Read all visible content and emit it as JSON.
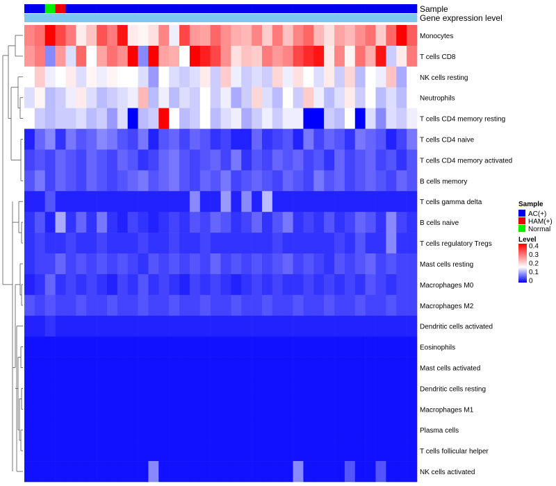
{
  "chart_data": {
    "type": "heatmap",
    "title": "",
    "annotation_tracks": [
      "Sample",
      "Gene expression level"
    ],
    "rows": [
      "Monocytes",
      "T cells CD8",
      "NK cells resting",
      "Neutrophils",
      "T cells CD4 memory resting",
      "T cells CD4 naive",
      "T cells CD4 memory activated",
      "B cells memory",
      "T cells gamma delta",
      "B cells naive",
      "T cells regulatory  Tregs",
      "Mast cells resting",
      "Macrophages M0",
      "Macrophages M2",
      "Dendritic cells activated",
      "Eosinophils",
      "Mast cells activated",
      "Dendritic cells resting",
      "Macrophages M1",
      "Plasma cells",
      "T cells follicular helper",
      "NK cells activated"
    ],
    "sample_groups": [
      "AC(+)",
      "AC(+)",
      "Normal",
      "HAM(+)",
      "AC(+)",
      "AC(+)",
      "AC(+)",
      "AC(+)",
      "AC(+)",
      "AC(+)",
      "AC(+)",
      "AC(+)",
      "AC(+)",
      "AC(+)",
      "AC(+)",
      "AC(+)",
      "AC(+)",
      "AC(+)",
      "AC(+)",
      "AC(+)",
      "AC(+)",
      "AC(+)",
      "AC(+)",
      "AC(+)",
      "AC(+)",
      "AC(+)",
      "AC(+)",
      "AC(+)",
      "AC(+)",
      "AC(+)",
      "AC(+)",
      "AC(+)",
      "AC(+)",
      "AC(+)",
      "AC(+)",
      "AC(+)",
      "AC(+)",
      "AC(+)"
    ],
    "expression_track": [
      0.9,
      0.9,
      0.9,
      0.9,
      0.9,
      0.9,
      0.9,
      0.9,
      0.9,
      0.9,
      0.9,
      0.9,
      0.9,
      0.9,
      0.9,
      0.9,
      0.9,
      0.9,
      0.9,
      0.9,
      0.9,
      0.9,
      0.9,
      0.9,
      0.9,
      0.9,
      0.9,
      0.9,
      0.9,
      0.9,
      0.9,
      0.9,
      0.9,
      0.9,
      0.9,
      0.9,
      0.9,
      0.9
    ],
    "values": [
      [
        0.27,
        0.29,
        0.4,
        0.33,
        0.28,
        0.17,
        0.21,
        0.32,
        0.28,
        0.38,
        0.17,
        0.16,
        0.18,
        0.27,
        0.14,
        0.33,
        0.25,
        0.24,
        0.3,
        0.26,
        0.23,
        0.22,
        0.27,
        0.2,
        0.28,
        0.21,
        0.27,
        0.3,
        0.22,
        0.18,
        0.24,
        0.22,
        0.26,
        0.29,
        0.2,
        0.3,
        0.4,
        0.31
      ],
      [
        0.25,
        0.28,
        0.08,
        0.25,
        0.13,
        0.3,
        0.15,
        0.24,
        0.29,
        0.26,
        0.4,
        0.08,
        0.4,
        0.24,
        0.23,
        0.15,
        0.4,
        0.37,
        0.33,
        0.26,
        0.18,
        0.21,
        0.2,
        0.28,
        0.25,
        0.27,
        0.33,
        0.36,
        0.38,
        0.17,
        0.27,
        0.16,
        0.29,
        0.23,
        0.38,
        0.12,
        0.17,
        0.28
      ],
      [
        0.15,
        0.2,
        0.14,
        0.15,
        0.17,
        0.13,
        0.16,
        0.14,
        0.16,
        0.15,
        0.15,
        0.13,
        0.09,
        0.15,
        0.13,
        0.12,
        0.13,
        0.17,
        0.12,
        0.2,
        0.14,
        0.12,
        0.13,
        0.12,
        0.19,
        0.14,
        0.18,
        0.15,
        0.13,
        0.17,
        0.12,
        0.19,
        0.11,
        0.15,
        0.14,
        0.21,
        0.1,
        0.15
      ],
      [
        0.13,
        0.16,
        0.11,
        0.12,
        0.14,
        0.17,
        0.13,
        0.11,
        0.12,
        0.13,
        0.14,
        0.22,
        0.11,
        0.14,
        0.11,
        0.13,
        0.12,
        0.15,
        0.12,
        0.14,
        0.1,
        0.12,
        0.19,
        0.13,
        0.11,
        0.15,
        0.12,
        0.2,
        0.14,
        0.11,
        0.13,
        0.17,
        0.12,
        0.15,
        0.11,
        0.13,
        0.11,
        0.15
      ],
      [
        0.15,
        0.12,
        0.11,
        0.12,
        0.12,
        0.13,
        0.11,
        0.12,
        0.09,
        0.13,
        0.0,
        0.11,
        0.12,
        0.4,
        0.15,
        0.11,
        0.12,
        0.15,
        0.11,
        0.13,
        0.14,
        0.1,
        0.12,
        0.14,
        0.12,
        0.14,
        0.14,
        0.0,
        0.0,
        0.12,
        0.11,
        0.15,
        0.0,
        0.13,
        0.08,
        0.13,
        0.12,
        0.14
      ],
      [
        0.02,
        0.06,
        0.08,
        0.03,
        0.07,
        0.05,
        0.06,
        0.08,
        0.07,
        0.05,
        0.04,
        0.07,
        0.02,
        0.05,
        0.06,
        0.04,
        0.06,
        0.05,
        0.03,
        0.04,
        0.02,
        0.02,
        0.06,
        0.03,
        0.04,
        0.05,
        0.02,
        0.07,
        0.04,
        0.06,
        0.05,
        0.03,
        0.07,
        0.06,
        0.05,
        0.02,
        0.04,
        0.07
      ],
      [
        0.04,
        0.05,
        0.04,
        0.06,
        0.05,
        0.04,
        0.06,
        0.05,
        0.04,
        0.06,
        0.05,
        0.03,
        0.04,
        0.06,
        0.07,
        0.05,
        0.04,
        0.05,
        0.06,
        0.04,
        0.07,
        0.03,
        0.05,
        0.04,
        0.06,
        0.05,
        0.06,
        0.04,
        0.05,
        0.03,
        0.06,
        0.04,
        0.05,
        0.06,
        0.04,
        0.05,
        0.03,
        0.05
      ],
      [
        0.05,
        0.07,
        0.04,
        0.06,
        0.05,
        0.04,
        0.06,
        0.05,
        0.04,
        0.05,
        0.06,
        0.07,
        0.05,
        0.06,
        0.07,
        0.05,
        0.04,
        0.06,
        0.05,
        0.07,
        0.04,
        0.05,
        0.06,
        0.05,
        0.04,
        0.06,
        0.05,
        0.04,
        0.07,
        0.05,
        0.06,
        0.04,
        0.05,
        0.06,
        0.05,
        0.04,
        0.06,
        0.05
      ],
      [
        0.02,
        0.02,
        0.05,
        0.02,
        0.02,
        0.02,
        0.02,
        0.02,
        0.02,
        0.02,
        0.02,
        0.02,
        0.02,
        0.02,
        0.02,
        0.02,
        0.08,
        0.02,
        0.02,
        0.09,
        0.02,
        0.08,
        0.02,
        0.11,
        0.02,
        0.02,
        0.02,
        0.02,
        0.02,
        0.02,
        0.02,
        0.02,
        0.02,
        0.02,
        0.02,
        0.02,
        0.02,
        0.02
      ],
      [
        0.03,
        0.05,
        0.02,
        0.1,
        0.03,
        0.06,
        0.03,
        0.07,
        0.03,
        0.02,
        0.04,
        0.03,
        0.02,
        0.03,
        0.04,
        0.03,
        0.05,
        0.04,
        0.06,
        0.05,
        0.03,
        0.04,
        0.06,
        0.03,
        0.05,
        0.07,
        0.03,
        0.04,
        0.03,
        0.05,
        0.03,
        0.04,
        0.06,
        0.05,
        0.03,
        0.08,
        0.04,
        0.03
      ],
      [
        0.03,
        0.04,
        0.03,
        0.03,
        0.04,
        0.03,
        0.03,
        0.04,
        0.03,
        0.03,
        0.03,
        0.04,
        0.03,
        0.03,
        0.04,
        0.03,
        0.03,
        0.04,
        0.03,
        0.03,
        0.03,
        0.03,
        0.03,
        0.03,
        0.04,
        0.03,
        0.03,
        0.03,
        0.03,
        0.03,
        0.04,
        0.03,
        0.05,
        0.03,
        0.03,
        0.08,
        0.03,
        0.03
      ],
      [
        0.03,
        0.04,
        0.04,
        0.06,
        0.04,
        0.05,
        0.04,
        0.05,
        0.04,
        0.05,
        0.04,
        0.03,
        0.05,
        0.04,
        0.05,
        0.04,
        0.05,
        0.04,
        0.06,
        0.04,
        0.05,
        0.04,
        0.05,
        0.04,
        0.05,
        0.06,
        0.04,
        0.05,
        0.04,
        0.03,
        0.05,
        0.04,
        0.05,
        0.06,
        0.04,
        0.05,
        0.04,
        0.04
      ],
      [
        0.02,
        0.03,
        0.06,
        0.03,
        0.04,
        0.03,
        0.04,
        0.03,
        0.02,
        0.04,
        0.03,
        0.05,
        0.03,
        0.04,
        0.03,
        0.02,
        0.04,
        0.03,
        0.04,
        0.03,
        0.02,
        0.03,
        0.04,
        0.03,
        0.04,
        0.03,
        0.03,
        0.04,
        0.03,
        0.04,
        0.03,
        0.04,
        0.03,
        0.05,
        0.04,
        0.03,
        0.04,
        0.04
      ],
      [
        0.05,
        0.04,
        0.05,
        0.04,
        0.04,
        0.05,
        0.04,
        0.04,
        0.05,
        0.04,
        0.04,
        0.05,
        0.04,
        0.04,
        0.05,
        0.04,
        0.04,
        0.05,
        0.04,
        0.04,
        0.05,
        0.04,
        0.04,
        0.05,
        0.04,
        0.04,
        0.05,
        0.04,
        0.04,
        0.05,
        0.04,
        0.04,
        0.05,
        0.04,
        0.04,
        0.05,
        0.04,
        0.04
      ],
      [
        0.02,
        0.02,
        0.03,
        0.02,
        0.02,
        0.02,
        0.02,
        0.02,
        0.02,
        0.02,
        0.02,
        0.02,
        0.02,
        0.02,
        0.02,
        0.02,
        0.02,
        0.02,
        0.02,
        0.02,
        0.02,
        0.02,
        0.02,
        0.02,
        0.02,
        0.02,
        0.02,
        0.02,
        0.02,
        0.02,
        0.02,
        0.02,
        0.02,
        0.02,
        0.02,
        0.02,
        0.02,
        0.02
      ],
      [
        0.01,
        0.01,
        0.01,
        0.01,
        0.01,
        0.01,
        0.01,
        0.01,
        0.01,
        0.01,
        0.01,
        0.01,
        0.01,
        0.01,
        0.01,
        0.01,
        0.01,
        0.01,
        0.01,
        0.01,
        0.01,
        0.01,
        0.01,
        0.01,
        0.01,
        0.01,
        0.01,
        0.01,
        0.01,
        0.01,
        0.01,
        0.01,
        0.01,
        0.01,
        0.01,
        0.01,
        0.01,
        0.01
      ],
      [
        0.01,
        0.01,
        0.01,
        0.01,
        0.01,
        0.01,
        0.01,
        0.01,
        0.01,
        0.01,
        0.01,
        0.01,
        0.01,
        0.01,
        0.01,
        0.01,
        0.01,
        0.01,
        0.01,
        0.01,
        0.01,
        0.01,
        0.01,
        0.01,
        0.01,
        0.01,
        0.01,
        0.01,
        0.01,
        0.01,
        0.01,
        0.01,
        0.01,
        0.01,
        0.01,
        0.01,
        0.01,
        0.01
      ],
      [
        0.01,
        0.01,
        0.01,
        0.01,
        0.01,
        0.01,
        0.01,
        0.01,
        0.01,
        0.01,
        0.01,
        0.01,
        0.01,
        0.01,
        0.01,
        0.01,
        0.01,
        0.01,
        0.01,
        0.01,
        0.01,
        0.01,
        0.01,
        0.01,
        0.01,
        0.01,
        0.01,
        0.01,
        0.01,
        0.01,
        0.01,
        0.01,
        0.01,
        0.01,
        0.01,
        0.01,
        0.01,
        0.01
      ],
      [
        0.01,
        0.01,
        0.01,
        0.01,
        0.01,
        0.01,
        0.01,
        0.01,
        0.01,
        0.01,
        0.01,
        0.01,
        0.01,
        0.01,
        0.01,
        0.01,
        0.01,
        0.01,
        0.01,
        0.01,
        0.01,
        0.01,
        0.01,
        0.01,
        0.01,
        0.01,
        0.01,
        0.01,
        0.01,
        0.01,
        0.01,
        0.01,
        0.01,
        0.01,
        0.01,
        0.01,
        0.01,
        0.01
      ],
      [
        0.01,
        0.01,
        0.01,
        0.01,
        0.01,
        0.01,
        0.01,
        0.01,
        0.01,
        0.01,
        0.01,
        0.01,
        0.01,
        0.01,
        0.01,
        0.01,
        0.01,
        0.01,
        0.01,
        0.01,
        0.01,
        0.01,
        0.01,
        0.01,
        0.01,
        0.01,
        0.01,
        0.01,
        0.01,
        0.01,
        0.01,
        0.01,
        0.01,
        0.01,
        0.01,
        0.01,
        0.01,
        0.01
      ],
      [
        0.01,
        0.01,
        0.01,
        0.01,
        0.01,
        0.01,
        0.01,
        0.01,
        0.01,
        0.01,
        0.01,
        0.01,
        0.01,
        0.01,
        0.01,
        0.01,
        0.01,
        0.01,
        0.01,
        0.01,
        0.01,
        0.01,
        0.01,
        0.01,
        0.01,
        0.01,
        0.01,
        0.01,
        0.01,
        0.01,
        0.01,
        0.01,
        0.01,
        0.01,
        0.01,
        0.01,
        0.01,
        0.01
      ],
      [
        0.01,
        0.01,
        0.01,
        0.01,
        0.01,
        0.01,
        0.01,
        0.01,
        0.01,
        0.01,
        0.01,
        0.01,
        0.08,
        0.01,
        0.01,
        0.01,
        0.01,
        0.01,
        0.01,
        0.01,
        0.01,
        0.01,
        0.01,
        0.01,
        0.01,
        0.01,
        0.08,
        0.01,
        0.01,
        0.01,
        0.01,
        0.05,
        0.01,
        0.01,
        0.05,
        0.01,
        0.01,
        0.01
      ]
    ],
    "legend_sample": {
      "title": "Sample",
      "entries": [
        {
          "label": "AC(+)",
          "color": "#0000ee"
        },
        {
          "label": "HAM(+)",
          "color": "#ee0000"
        },
        {
          "label": "Normal",
          "color": "#00ee00"
        }
      ]
    },
    "legend_level": {
      "title": "Level",
      "ticks": [
        "0.4",
        "0.3",
        "0.2",
        "0.1",
        "0"
      ],
      "min": 0,
      "max": 0.4
    },
    "color_scale": {
      "low": "#0000ff",
      "mid": "#ffffff",
      "high": "#ff0000",
      "mid_value": 0.15
    }
  }
}
